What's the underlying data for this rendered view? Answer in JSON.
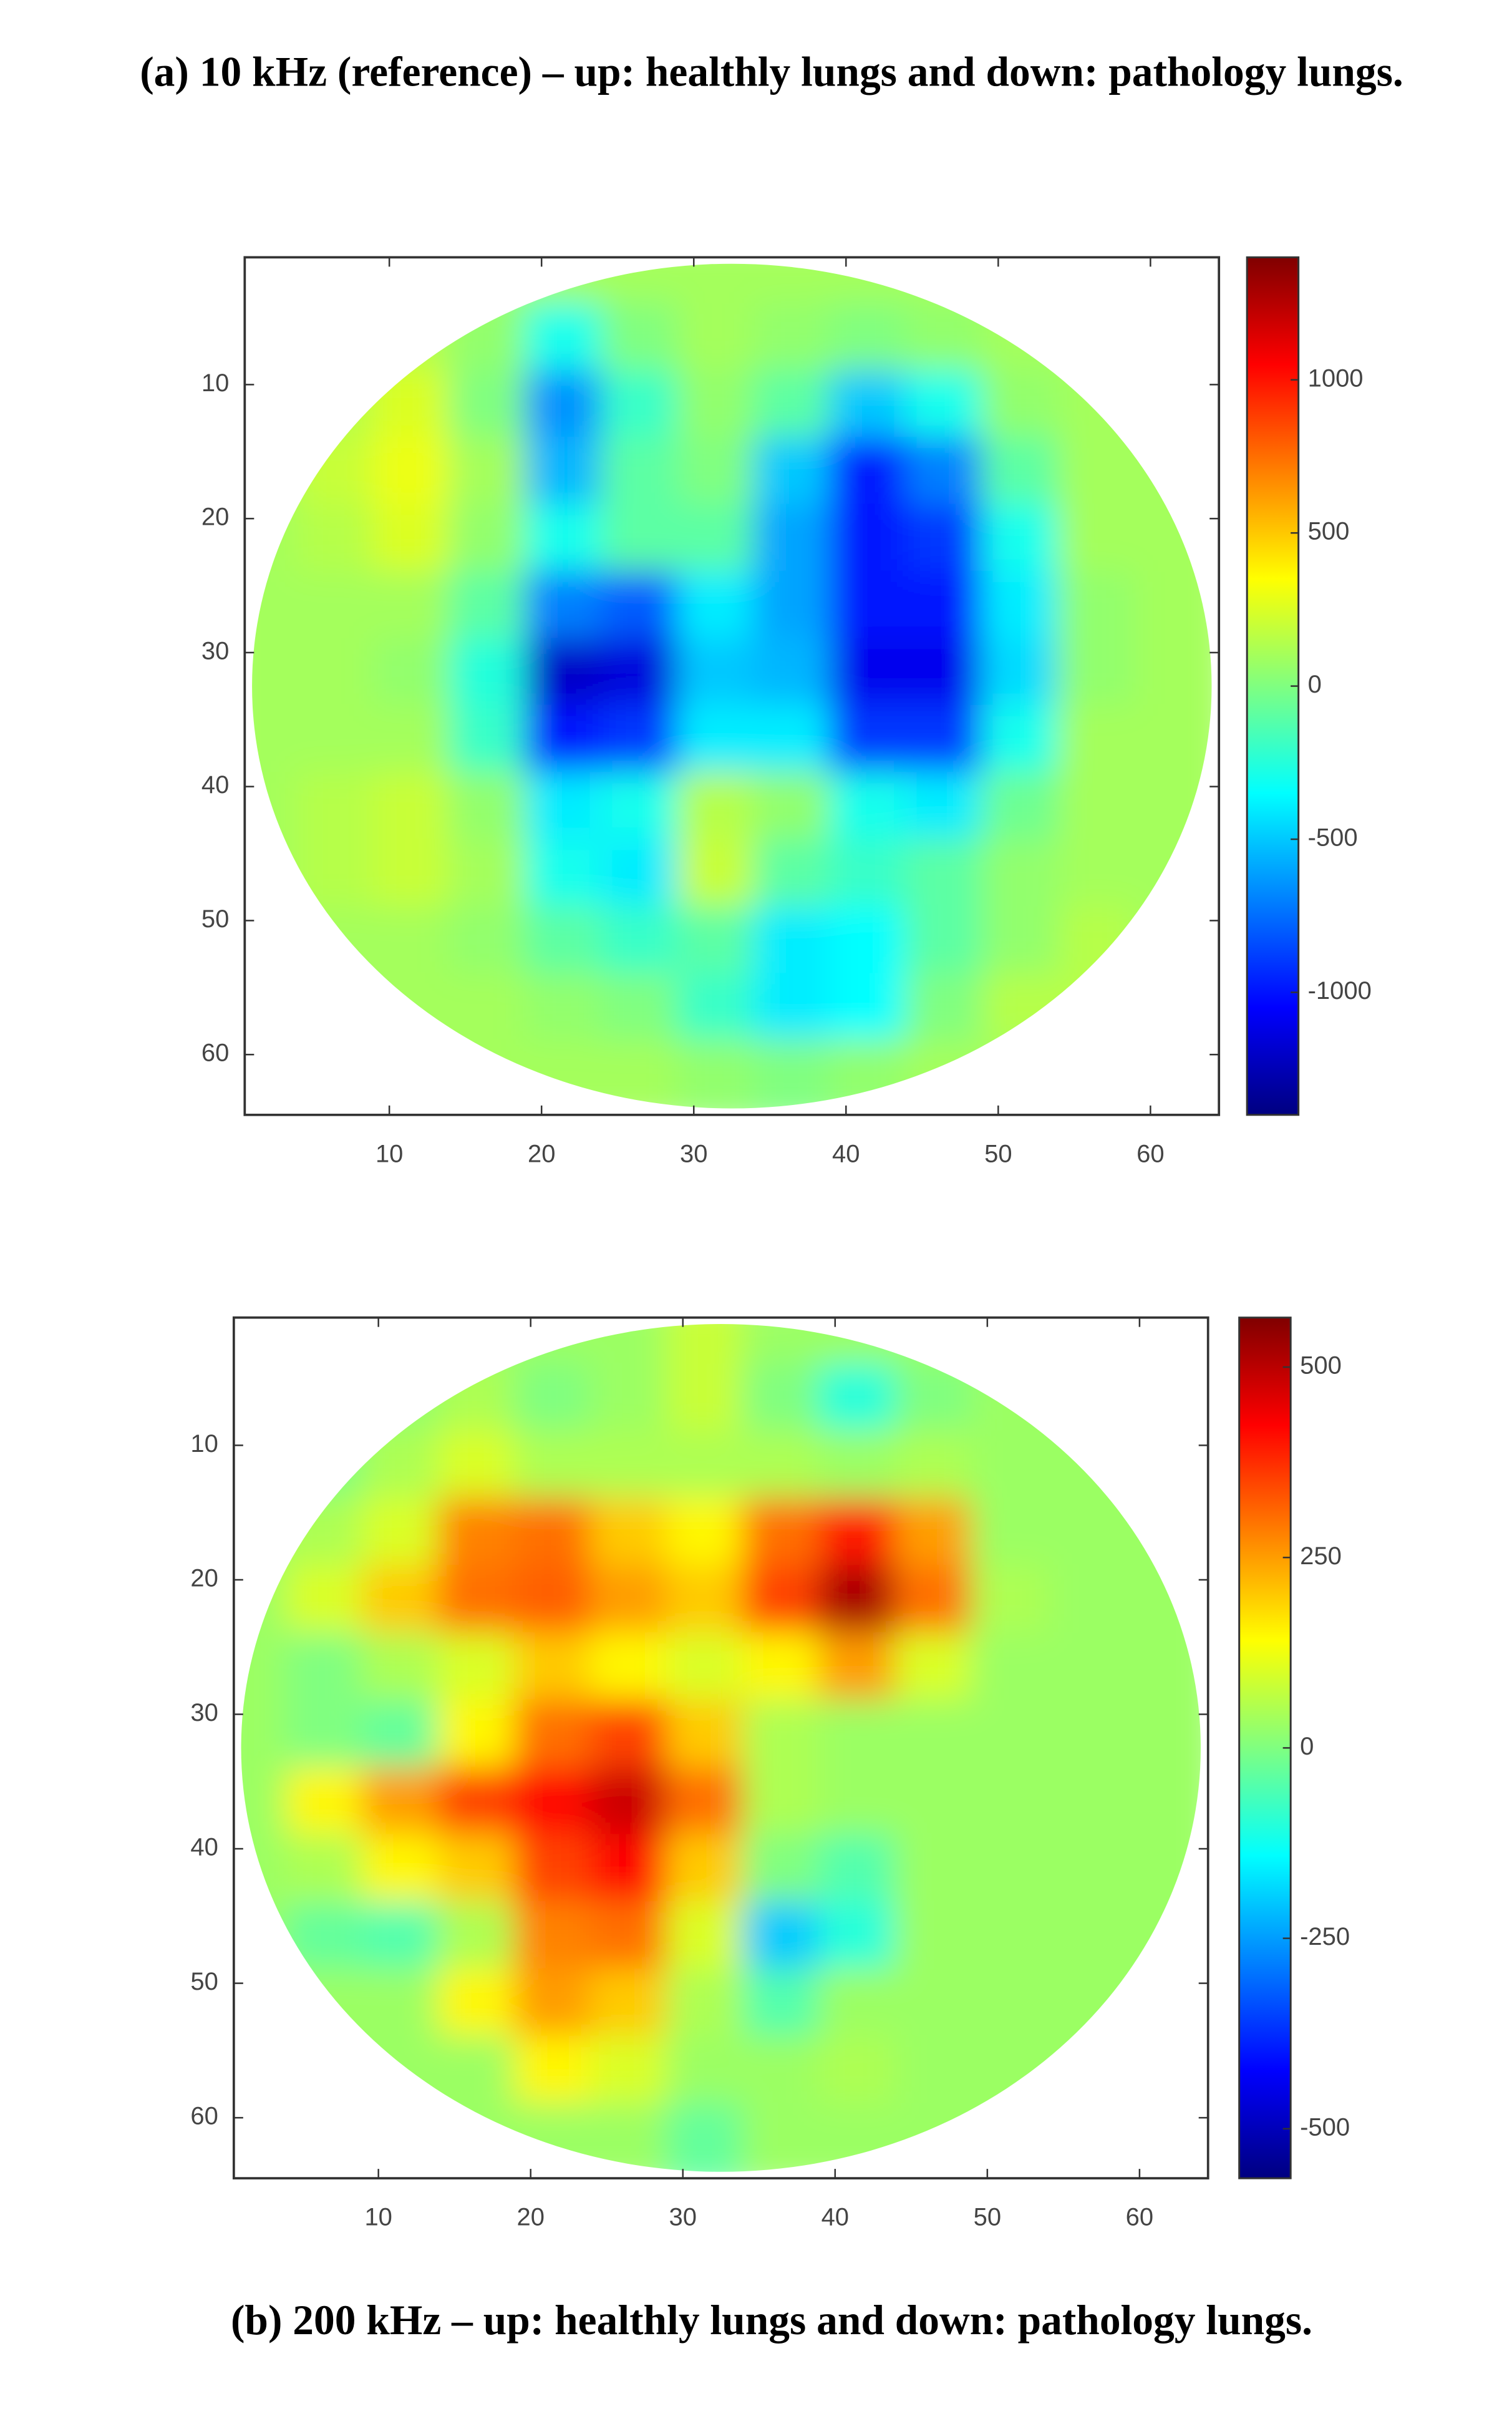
{
  "chart_data": [
    {
      "type": "heatmap",
      "title": "(a) 10 kHz (reference) – up: healthly lungs and down: pathology lungs.",
      "colormap": "jet",
      "x": [
        2,
        7,
        12,
        17,
        22,
        27,
        32,
        37,
        42,
        47,
        52,
        57,
        62
      ],
      "y": [
        2,
        7,
        12,
        17,
        22,
        27,
        32,
        37,
        42,
        47,
        52,
        57,
        62
      ],
      "values": [
        [
          100,
          100,
          100,
          100,
          100,
          100,
          100,
          100,
          100,
          100,
          100,
          100,
          100
        ],
        [
          100,
          100,
          150,
          50,
          -300,
          0,
          100,
          50,
          0,
          50,
          100,
          100,
          100
        ],
        [
          100,
          150,
          250,
          0,
          -650,
          -200,
          50,
          -100,
          -500,
          -300,
          50,
          100,
          100
        ],
        [
          100,
          200,
          300,
          100,
          -550,
          -100,
          0,
          -500,
          -1000,
          -700,
          -100,
          100,
          100
        ],
        [
          100,
          150,
          250,
          50,
          -300,
          -100,
          -100,
          -600,
          -1000,
          -900,
          -300,
          100,
          100
        ],
        [
          100,
          100,
          100,
          -100,
          -700,
          -800,
          -400,
          -600,
          -1000,
          -1000,
          -400,
          50,
          100
        ],
        [
          100,
          100,
          50,
          -250,
          -1200,
          -1150,
          -500,
          -550,
          -1100,
          -1100,
          -450,
          50,
          100
        ],
        [
          100,
          100,
          100,
          -200,
          -1000,
          -900,
          -400,
          -400,
          -900,
          -900,
          -300,
          100,
          100
        ],
        [
          100,
          150,
          200,
          50,
          -400,
          -300,
          150,
          50,
          -300,
          -400,
          -50,
          100,
          100
        ],
        [
          100,
          150,
          200,
          100,
          -300,
          -400,
          200,
          -100,
          -200,
          -100,
          50,
          100,
          100
        ],
        [
          100,
          100,
          100,
          50,
          -100,
          -200,
          -100,
          -400,
          -350,
          -100,
          50,
          150,
          100
        ],
        [
          100,
          100,
          100,
          100,
          50,
          0,
          -200,
          -400,
          -350,
          0,
          150,
          150,
          100
        ],
        [
          100,
          100,
          100,
          100,
          100,
          100,
          50,
          0,
          50,
          100,
          100,
          100,
          100
        ]
      ],
      "xlim": [
        0.5,
        64.5
      ],
      "ylim": [
        0.5,
        64.5
      ],
      "xticks": [
        10,
        20,
        30,
        40,
        50,
        60
      ],
      "yticks": [
        10,
        20,
        30,
        40,
        50,
        60
      ],
      "clim": [
        -1400,
        1400
      ],
      "cticks": [
        -1000,
        -500,
        0,
        500,
        1000
      ]
    },
    {
      "type": "heatmap",
      "title": "(b) 200 kHz – up: healthly lungs and down: pathology lungs.",
      "colormap": "jet",
      "x": [
        2,
        7,
        12,
        17,
        22,
        27,
        32,
        37,
        42,
        47,
        52,
        57,
        62
      ],
      "y": [
        2,
        7,
        12,
        17,
        22,
        27,
        32,
        37,
        42,
        47,
        52,
        57,
        62
      ],
      "values": [
        [
          30,
          30,
          30,
          30,
          30,
          30,
          80,
          30,
          30,
          30,
          30,
          30,
          30
        ],
        [
          30,
          30,
          20,
          50,
          0,
          30,
          80,
          0,
          -100,
          0,
          30,
          30,
          30
        ],
        [
          30,
          0,
          50,
          100,
          50,
          50,
          50,
          50,
          30,
          50,
          30,
          30,
          30
        ],
        [
          30,
          50,
          100,
          280,
          300,
          200,
          150,
          300,
          400,
          250,
          30,
          30,
          30
        ],
        [
          30,
          100,
          200,
          300,
          320,
          250,
          200,
          350,
          520,
          300,
          50,
          30,
          30
        ],
        [
          30,
          0,
          50,
          100,
          200,
          150,
          100,
          150,
          250,
          100,
          30,
          30,
          30
        ],
        [
          30,
          0,
          -30,
          150,
          300,
          350,
          200,
          50,
          30,
          30,
          30,
          30,
          30
        ],
        [
          30,
          150,
          250,
          350,
          420,
          480,
          300,
          50,
          30,
          30,
          30,
          30,
          30
        ],
        [
          30,
          50,
          150,
          200,
          350,
          420,
          200,
          0,
          -50,
          30,
          30,
          30,
          30
        ],
        [
          30,
          -30,
          -50,
          50,
          280,
          300,
          100,
          -200,
          -100,
          30,
          30,
          30,
          30
        ],
        [
          30,
          30,
          30,
          150,
          250,
          200,
          50,
          -50,
          30,
          30,
          30,
          30,
          30
        ],
        [
          30,
          30,
          30,
          30,
          150,
          100,
          30,
          30,
          50,
          30,
          30,
          30,
          30
        ],
        [
          30,
          30,
          30,
          30,
          30,
          30,
          -30,
          30,
          30,
          30,
          30,
          30,
          30
        ]
      ],
      "xlim": [
        0.5,
        64.5
      ],
      "ylim": [
        0.5,
        64.5
      ],
      "xticks": [
        10,
        20,
        30,
        40,
        50,
        60
      ],
      "yticks": [
        10,
        20,
        30,
        40,
        50,
        60
      ],
      "clim": [
        -565,
        565
      ],
      "cticks": [
        -500,
        -250,
        0,
        250,
        500
      ]
    }
  ]
}
